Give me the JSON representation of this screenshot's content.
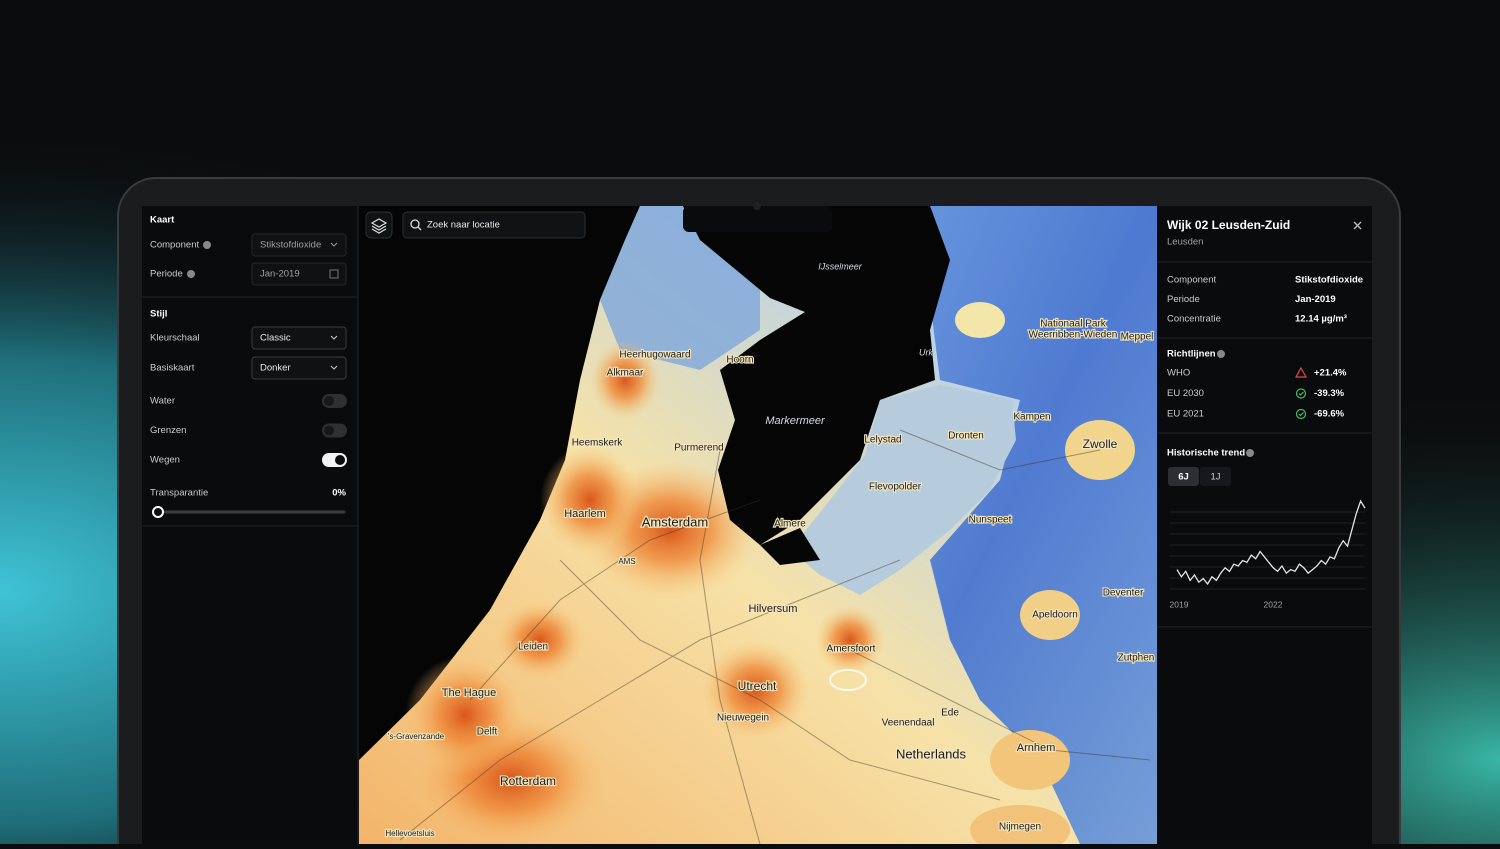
{
  "left_panel": {
    "map_section": {
      "title": "Kaart",
      "component_label": "Component",
      "component_value": "Stikstofdioxide",
      "period_label": "Periode",
      "period_value": "Jan-2019"
    },
    "style_section": {
      "title": "Stijl",
      "color_scale_label": "Kleurschaal",
      "color_scale_value": "Classic",
      "basemap_label": "Basiskaart",
      "basemap_value": "Donker",
      "toggles": [
        {
          "label": "Water",
          "on": false
        },
        {
          "label": "Grenzen",
          "on": false
        },
        {
          "label": "Wegen",
          "on": true
        }
      ],
      "transparency_label": "Transparantie",
      "transparency_value": "0%"
    }
  },
  "search": {
    "placeholder": "Zoek naar locatie"
  },
  "map": {
    "labels": [
      "IJsselmeer",
      "Heerhugowaard",
      "Alkmaar",
      "Hoorn",
      "Urk",
      "Nationaal Park",
      "Weerribben-Wieden",
      "Meppel",
      "Markermeer",
      "Lelystad",
      "Dronten",
      "Kampen",
      "Zwolle",
      "Heemskerk",
      "Purmerend",
      "Haarlem",
      "Amsterdam",
      "AMS",
      "Almere",
      "Flevopolder",
      "Nunspeet",
      "Hilversum",
      "Deventer",
      "Apeldoorn",
      "Leiden",
      "Amersfoort",
      "Zutphen",
      "The Hague",
      "Utrecht",
      "Nieuwegein",
      "Delft",
      "'s-Gravenzande",
      "Veenendaal",
      "Ede",
      "Arnhem",
      "Netherlands",
      "Rotterdam",
      "Hellevoetsluis",
      "Nijmegen"
    ]
  },
  "detail_panel": {
    "title": "Wijk 02 Leusden-Zuid",
    "subtitle": "Leusden",
    "rows": [
      {
        "label": "Component",
        "value": "Stikstofdioxide"
      },
      {
        "label": "Periode",
        "value": "Jan-2019"
      },
      {
        "label": "Concentratie",
        "value": "12.14 µg/m³"
      }
    ],
    "guidelines_title": "Richtlijnen",
    "guidelines": [
      {
        "label": "WHO",
        "value": "+21.4%",
        "status": "warning"
      },
      {
        "label": "EU 2030",
        "value": "-39.3%",
        "status": "ok"
      },
      {
        "label": "EU 2021",
        "value": "-69.6%",
        "status": "ok"
      }
    ],
    "trend": {
      "title": "Historische trend",
      "ranges": [
        "6J",
        "1J"
      ],
      "active_range": "6J",
      "x_labels": [
        "2019",
        "2022"
      ],
      "values": [
        14,
        10,
        13,
        8,
        11,
        7,
        9,
        6,
        10,
        8,
        12,
        15,
        13,
        17,
        16,
        19,
        18,
        22,
        20,
        24,
        21,
        18,
        15,
        13,
        16,
        12,
        14,
        13,
        17,
        15,
        12,
        14,
        16,
        19,
        17,
        21,
        20,
        26,
        30,
        27,
        36,
        45,
        52,
        48
      ]
    }
  }
}
